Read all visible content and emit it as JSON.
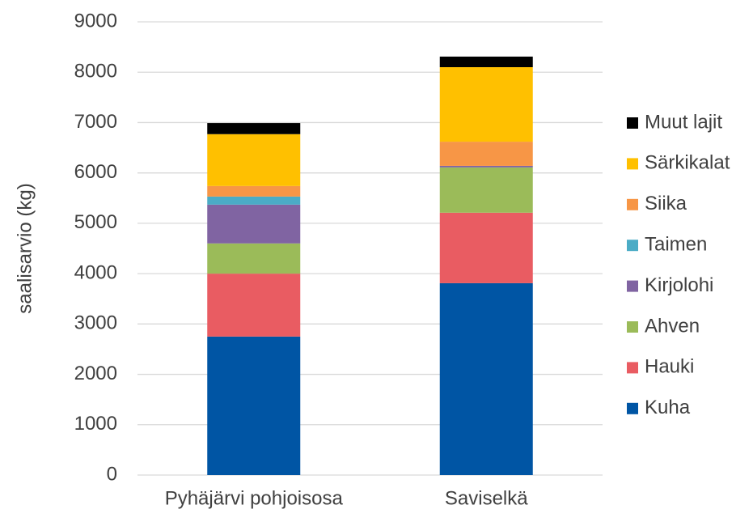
{
  "chart_data": {
    "type": "stacked_bar",
    "ylabel": "saalisarvio (kg)",
    "categories": [
      "Pyhäjärvi pohjoisosa",
      "Saviselkä"
    ],
    "series": [
      {
        "name": "Kuha",
        "color": "#0055a4",
        "values": [
          2750,
          3810
        ]
      },
      {
        "name": "Hauki",
        "color": "#e95c62",
        "values": [
          1250,
          1400
        ]
      },
      {
        "name": "Ahven",
        "color": "#9bbb59",
        "values": [
          600,
          900
        ]
      },
      {
        "name": "Kirjolohi",
        "color": "#8064a2",
        "values": [
          770,
          30
        ]
      },
      {
        "name": "Taimen",
        "color": "#4bacc6",
        "values": [
          160,
          0
        ]
      },
      {
        "name": "Siika",
        "color": "#f79646",
        "values": [
          210,
          480
        ]
      },
      {
        "name": "Särkikalat",
        "color": "#ffc000",
        "values": [
          1030,
          1480
        ]
      },
      {
        "name": "Muut lajit",
        "color": "#000000",
        "values": [
          220,
          210
        ]
      }
    ],
    "ylim": [
      0,
      9000
    ],
    "yticks": [
      0,
      1000,
      2000,
      3000,
      4000,
      5000,
      6000,
      7000,
      8000,
      9000
    ],
    "grid": true,
    "legend": "right"
  }
}
